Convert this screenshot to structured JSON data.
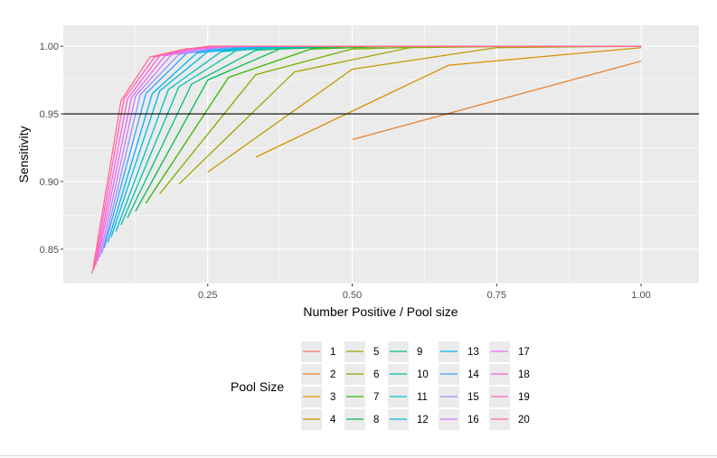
{
  "colors": {
    "panel": "#EBEBEB",
    "gridline": "#FFFFFF",
    "reference_line": "#000000",
    "series": [
      "#F8766D",
      "#EA8331",
      "#D89000",
      "#C09B00",
      "#A3A500",
      "#7CAE00",
      "#39B600",
      "#00BB4E",
      "#00BF7D",
      "#00C1A3",
      "#00BFC4",
      "#00BAE0",
      "#00B0F6",
      "#35A2FF",
      "#9590FF",
      "#C77CFF",
      "#E76BF3",
      "#FA62DB",
      "#FF62BC",
      "#FF6C91"
    ]
  },
  "chart_data": {
    "type": "line",
    "title": "",
    "xlabel": "Number Positive / Pool size",
    "ylabel": "Sensitivity",
    "xlim": [
      0.0,
      1.1
    ],
    "ylim": [
      0.8245,
      1.0155
    ],
    "x_ticks": [
      0.25,
      0.5,
      0.75,
      1.0
    ],
    "x_tick_labels": [
      "0.25",
      "0.50",
      "0.75",
      "1.00"
    ],
    "y_ticks": [
      0.85,
      0.9,
      0.95,
      1.0
    ],
    "y_tick_labels": [
      "0.85",
      "0.90",
      "0.95",
      "1.00"
    ],
    "grid": true,
    "legend_position": "bottom",
    "legend_title": "Pool Size",
    "hline": 0.95,
    "series": [
      {
        "name": "1",
        "x": [
          1.0
        ],
        "y": [
          0.999
        ]
      },
      {
        "name": "2",
        "x": [
          0.5,
          1.0
        ],
        "y": [
          0.931,
          0.989
        ]
      },
      {
        "name": "3",
        "x": [
          0.333,
          0.667,
          1.0
        ],
        "y": [
          0.918,
          0.986,
          0.999
        ]
      },
      {
        "name": "4",
        "x": [
          0.25,
          0.5,
          0.75,
          1.0
        ],
        "y": [
          0.907,
          0.983,
          0.999,
          1.0
        ]
      },
      {
        "name": "5",
        "x": [
          0.2,
          0.4,
          0.6,
          0.8,
          1.0
        ],
        "y": [
          0.898,
          0.981,
          0.999,
          1.0,
          1.0
        ]
      },
      {
        "name": "6",
        "x": [
          0.167,
          0.333,
          0.5,
          0.667,
          0.833,
          1.0
        ],
        "y": [
          0.891,
          0.979,
          0.998,
          1.0,
          1.0,
          1.0
        ]
      },
      {
        "name": "7",
        "x": [
          0.143,
          0.286,
          0.429,
          0.571,
          0.714,
          0.857,
          1.0
        ],
        "y": [
          0.884,
          0.977,
          0.998,
          1.0,
          1.0,
          1.0,
          1.0
        ]
      },
      {
        "name": "8",
        "x": [
          0.125,
          0.25,
          0.375,
          0.5,
          0.625,
          0.75,
          1.0
        ],
        "y": [
          0.878,
          0.975,
          0.998,
          1.0,
          1.0,
          1.0,
          1.0
        ]
      },
      {
        "name": "9",
        "x": [
          0.111,
          0.222,
          0.333,
          0.444,
          0.556,
          1.0
        ],
        "y": [
          0.873,
          0.972,
          0.997,
          1.0,
          1.0,
          1.0
        ]
      },
      {
        "name": "10",
        "x": [
          0.1,
          0.2,
          0.3,
          0.4,
          0.5,
          1.0
        ],
        "y": [
          0.868,
          0.97,
          0.997,
          1.0,
          1.0,
          1.0
        ]
      },
      {
        "name": "11",
        "x": [
          0.091,
          0.182,
          0.273,
          0.364,
          0.455,
          1.0
        ],
        "y": [
          0.863,
          0.968,
          0.996,
          0.999,
          1.0,
          1.0
        ]
      },
      {
        "name": "12",
        "x": [
          0.083,
          0.167,
          0.25,
          0.333,
          0.417,
          1.0
        ],
        "y": [
          0.859,
          0.967,
          0.996,
          0.999,
          1.0,
          1.0
        ]
      },
      {
        "name": "13",
        "x": [
          0.077,
          0.154,
          0.231,
          0.308,
          0.385,
          1.0
        ],
        "y": [
          0.855,
          0.965,
          0.995,
          0.999,
          1.0,
          1.0
        ]
      },
      {
        "name": "14",
        "x": [
          0.071,
          0.143,
          0.214,
          0.286,
          0.357,
          1.0
        ],
        "y": [
          0.851,
          0.965,
          0.995,
          0.999,
          1.0,
          1.0
        ]
      },
      {
        "name": "15",
        "x": [
          0.067,
          0.133,
          0.2,
          0.267,
          0.333,
          1.0
        ],
        "y": [
          0.847,
          0.964,
          0.994,
          0.999,
          1.0,
          1.0
        ]
      },
      {
        "name": "16",
        "x": [
          0.063,
          0.125,
          0.188,
          0.25,
          0.313,
          1.0
        ],
        "y": [
          0.844,
          0.963,
          0.994,
          0.999,
          1.0,
          1.0
        ]
      },
      {
        "name": "17",
        "x": [
          0.059,
          0.118,
          0.176,
          0.235,
          0.294,
          1.0
        ],
        "y": [
          0.841,
          0.962,
          0.993,
          0.998,
          1.0,
          1.0
        ]
      },
      {
        "name": "18",
        "x": [
          0.056,
          0.111,
          0.167,
          0.222,
          0.278,
          1.0
        ],
        "y": [
          0.838,
          0.961,
          0.993,
          0.998,
          1.0,
          1.0
        ]
      },
      {
        "name": "19",
        "x": [
          0.053,
          0.105,
          0.158,
          0.211,
          0.263,
          1.0
        ],
        "y": [
          0.835,
          0.961,
          0.992,
          0.998,
          1.0,
          1.0
        ]
      },
      {
        "name": "20",
        "x": [
          0.05,
          0.1,
          0.15,
          0.2,
          0.25,
          1.0
        ],
        "y": [
          0.832,
          0.96,
          0.992,
          0.997,
          1.0,
          1.0
        ]
      }
    ]
  }
}
